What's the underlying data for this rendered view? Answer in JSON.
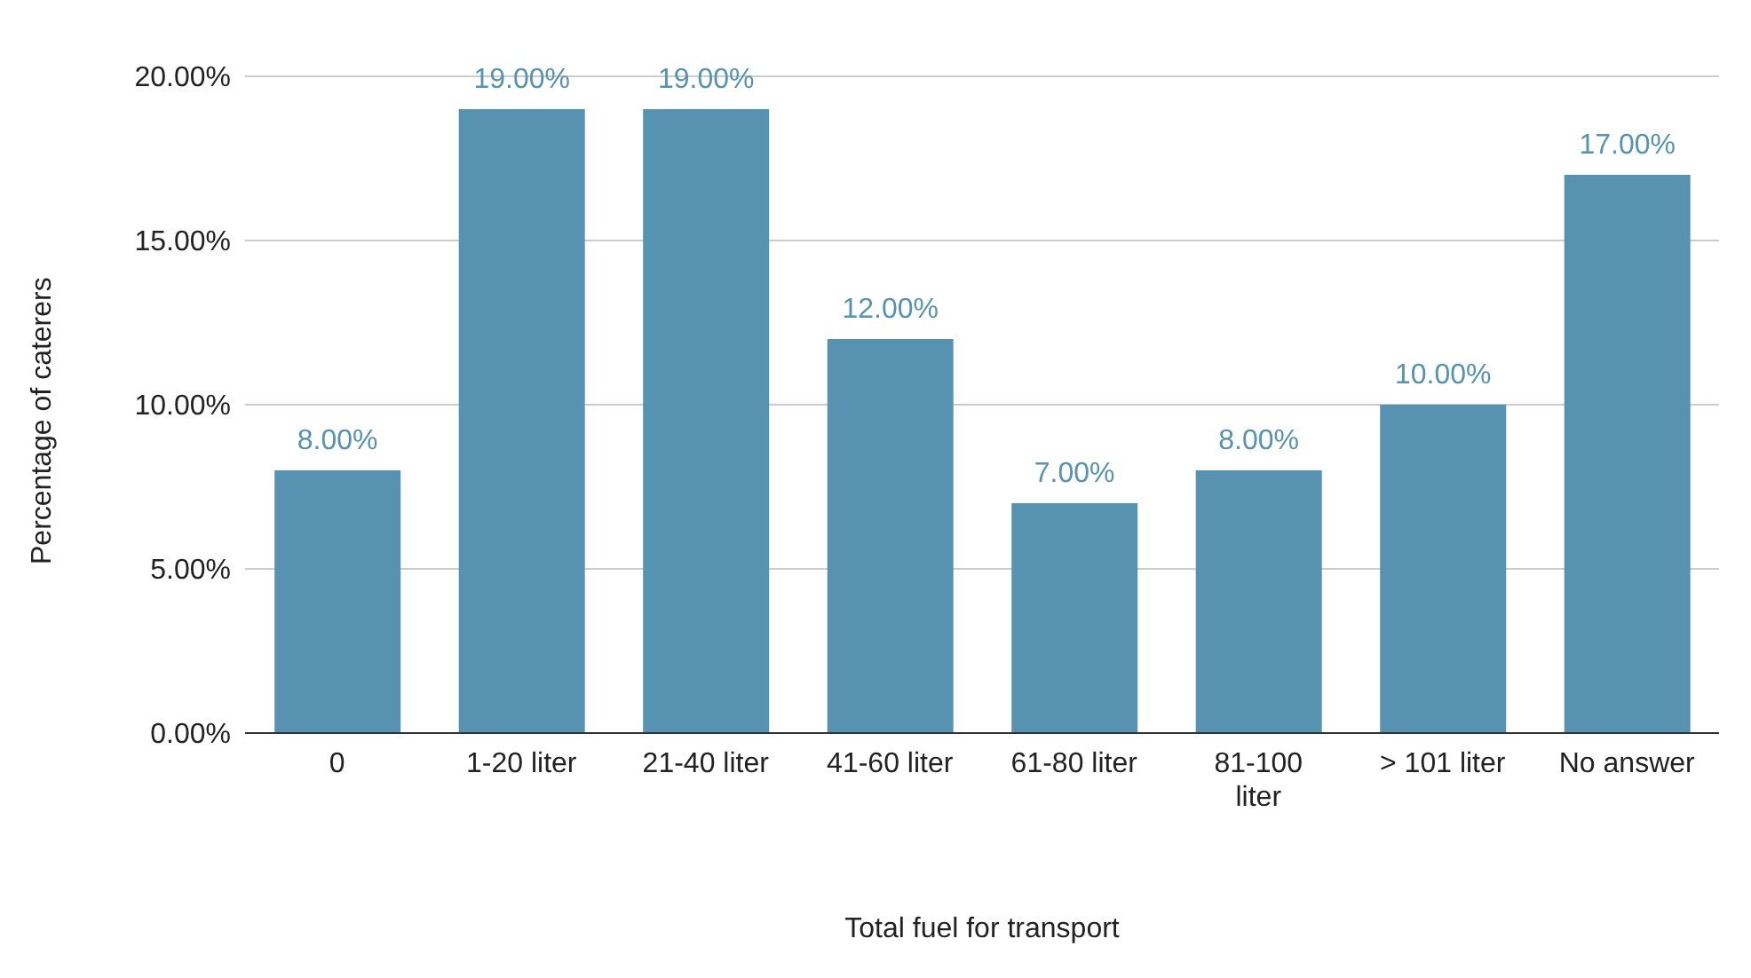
{
  "chart_data": {
    "type": "bar",
    "xlabel": "Total fuel for transport",
    "ylabel": "Percentage of caterers",
    "categories": [
      "0",
      "1-20 liter",
      "21-40 liter",
      "41-60 liter",
      "61-80 liter",
      "81-100 liter",
      "> 101 liter",
      "No answer"
    ],
    "values": [
      8,
      19,
      19,
      12,
      7,
      8,
      10,
      17
    ],
    "color": "#5793b0",
    "value_labels": [
      "8.00%",
      "19.00%",
      "19.00%",
      "12.00%",
      "7.00%",
      "8.00%",
      "10.00%",
      "17.00%"
    ],
    "ylim": [
      0,
      20
    ],
    "yticks": [
      {
        "value": 0,
        "label": "0.00%"
      },
      {
        "value": 5,
        "label": "5.00%"
      },
      {
        "value": 10,
        "label": "10.00%"
      },
      {
        "value": 15,
        "label": "15.00%"
      },
      {
        "value": 20,
        "label": "20.00%"
      }
    ],
    "grid": "y"
  }
}
